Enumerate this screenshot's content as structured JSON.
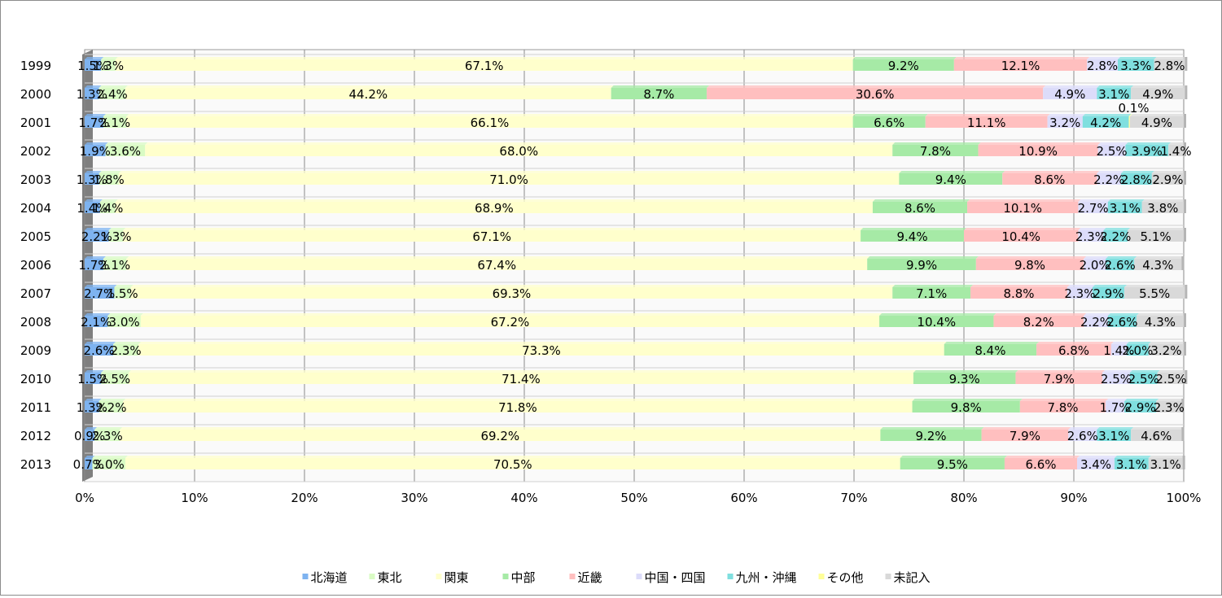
{
  "chart_data": {
    "type": "bar",
    "orientation": "horizontal",
    "stacked": "100%",
    "categories": [
      "1999",
      "2000",
      "2001",
      "2002",
      "2003",
      "2004",
      "2005",
      "2006",
      "2007",
      "2008",
      "2009",
      "2010",
      "2011",
      "2012",
      "2013"
    ],
    "series": [
      {
        "name": "北海道",
        "color": "#7eb3f0",
        "values": [
          1.5,
          1.3,
          1.7,
          1.9,
          1.3,
          1.4,
          2.2,
          1.7,
          2.7,
          2.1,
          2.6,
          1.5,
          1.3,
          0.9,
          0.7
        ]
      },
      {
        "name": "東北",
        "color": "#d9fbc4",
        "values": [
          1.3,
          2.4,
          2.1,
          3.6,
          1.8,
          1.4,
          1.3,
          2.1,
          1.5,
          3.0,
          2.3,
          2.5,
          2.2,
          2.3,
          3.0
        ]
      },
      {
        "name": "関東",
        "color": "#ffffcc",
        "values": [
          67.1,
          44.2,
          66.1,
          68.0,
          71.0,
          68.9,
          67.1,
          67.4,
          69.3,
          67.2,
          73.3,
          71.4,
          71.8,
          69.2,
          70.5
        ]
      },
      {
        "name": "中部",
        "color": "#a6eaa6",
        "values": [
          9.2,
          8.7,
          6.6,
          7.8,
          9.4,
          8.6,
          9.4,
          9.9,
          7.1,
          10.4,
          8.4,
          9.3,
          9.8,
          9.2,
          9.5
        ]
      },
      {
        "name": "近畿",
        "color": "#ffbfbf",
        "values": [
          12.1,
          30.6,
          11.1,
          10.9,
          8.6,
          10.1,
          10.4,
          9.8,
          8.8,
          8.2,
          6.8,
          7.9,
          7.8,
          7.9,
          6.6
        ]
      },
      {
        "name": "中国・四国",
        "color": "#dcdcfa",
        "values": [
          2.8,
          4.9,
          3.2,
          2.5,
          2.2,
          2.7,
          2.3,
          2.0,
          2.3,
          2.2,
          1.4,
          2.5,
          1.7,
          2.6,
          3.4
        ]
      },
      {
        "name": "九州・沖縄",
        "color": "#7fdfdf",
        "values": [
          3.3,
          3.1,
          4.2,
          3.9,
          2.8,
          3.1,
          2.2,
          2.6,
          2.9,
          2.6,
          2.0,
          2.5,
          2.9,
          3.1,
          3.1
        ]
      },
      {
        "name": "その他",
        "color": "#ffff99",
        "values": [
          0,
          0,
          0.1,
          0,
          0,
          0,
          0,
          0,
          0,
          0,
          0,
          0,
          0,
          0,
          0
        ]
      },
      {
        "name": "未記入",
        "color": "#d9d9d9",
        "values": [
          2.8,
          4.9,
          4.9,
          1.4,
          2.9,
          3.8,
          5.1,
          4.3,
          5.5,
          4.3,
          3.2,
          2.5,
          2.3,
          4.6,
          3.1
        ]
      }
    ],
    "labels": [
      [
        "1.5%",
        "1.3%",
        "67.1%",
        "9.2%",
        "12.1%",
        "2.8%",
        "3.3%",
        "",
        "2.8%"
      ],
      [
        "1.3%",
        "2.4%",
        "44.2%",
        "8.7%",
        "30.6%",
        "4.9%",
        "3.1%",
        "",
        "4.9%"
      ],
      [
        "1.7%",
        "2.1%",
        "66.1%",
        "6.6%",
        "11.1%",
        "3.2%",
        "4.2%",
        "0.1%",
        "4.9%"
      ],
      [
        "1.9%",
        "3.6%",
        "68.0%",
        "7.8%",
        "10.9%",
        "2.5%",
        "3.9%",
        "",
        "1.4%"
      ],
      [
        "1.3%",
        "1.8%",
        "71.0%",
        "9.4%",
        "8.6%",
        "2.2%",
        "2.8%",
        "",
        "2.9%"
      ],
      [
        "1.4%",
        "1.4%",
        "68.9%",
        "8.6%",
        "10.1%",
        "2.7%",
        "3.1%",
        "",
        "3.8%"
      ],
      [
        "2.2%",
        "1.3%",
        "67.1%",
        "9.4%",
        "10.4%",
        "2.3%",
        "2.2%",
        "",
        "5.1%"
      ],
      [
        "1.7%",
        "2.1%",
        "67.4%",
        "9.9%",
        "9.8%",
        "2.0%",
        "2.6%",
        "",
        "4.3%"
      ],
      [
        "2.7%",
        "1.5%",
        "69.3%",
        "7.1%",
        "8.8%",
        "2.3%",
        "2.9%",
        "",
        "5.5%"
      ],
      [
        "2.1%",
        "3.0%",
        "67.2%",
        "10.4%",
        "8.2%",
        "2.2%",
        "2.6%",
        "",
        "4.3%"
      ],
      [
        "2.6%",
        "2.3%",
        "73.3%",
        "8.4%",
        "6.8%",
        "1.4%",
        "2.0%",
        "",
        "3.2%"
      ],
      [
        "1.5%",
        "2.5%",
        "71.4%",
        "9.3%",
        "7.9%",
        "2.5%",
        "2.5%",
        "",
        "2.5%"
      ],
      [
        "1.3%",
        "2.2%",
        "71.8%",
        "9.8%",
        "7.8%",
        "1.7%",
        "2.9%",
        "",
        "2.3%"
      ],
      [
        "0.9%",
        "2.3%",
        "69.2%",
        "9.2%",
        "7.9%",
        "2.6%",
        "3.1%",
        "",
        "4.6%"
      ],
      [
        "0.7%",
        "3.0%",
        "70.5%",
        "9.5%",
        "6.6%",
        "3.4%",
        "3.1%",
        "",
        "3.1%"
      ]
    ],
    "x_ticks": [
      "0%",
      "10%",
      "20%",
      "30%",
      "40%",
      "50%",
      "60%",
      "70%",
      "80%",
      "90%",
      "100%"
    ],
    "xlim": [
      0,
      100
    ],
    "grid": true,
    "legend_position": "bottom"
  }
}
